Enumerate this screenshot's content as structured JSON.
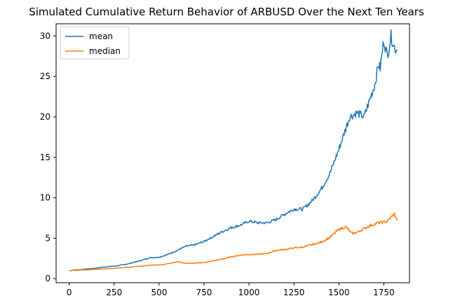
{
  "chart_data": {
    "type": "line",
    "title": "Simulated Cumulative Return Behavior of ARBUSD Over the Next Ten Years",
    "xlabel": "",
    "ylabel": "",
    "xlim": [
      -73,
      1893
    ],
    "ylim": [
      -0.5,
      31.5
    ],
    "xticks": [
      0,
      250,
      500,
      750,
      1000,
      1250,
      1500,
      1750
    ],
    "yticks": [
      0,
      5,
      10,
      15,
      20,
      25,
      30
    ],
    "grid": false,
    "legend": {
      "placement": "top-left",
      "entries": [
        "mean",
        "median"
      ]
    },
    "series": [
      {
        "name": "mean",
        "color": "#1f77b4",
        "x": [
          0,
          50,
          100,
          150,
          200,
          250,
          300,
          350,
          400,
          450,
          500,
          550,
          600,
          650,
          700,
          750,
          800,
          850,
          900,
          950,
          1000,
          1050,
          1100,
          1150,
          1200,
          1250,
          1300,
          1350,
          1400,
          1450,
          1500,
          1530,
          1560,
          1600,
          1640,
          1670,
          1700,
          1720,
          1730,
          1750,
          1770,
          1790,
          1810,
          1825
        ],
        "y": [
          1.0,
          1.1,
          1.2,
          1.3,
          1.45,
          1.55,
          1.7,
          1.95,
          2.25,
          2.6,
          2.65,
          3.0,
          3.5,
          4.0,
          4.2,
          4.6,
          5.2,
          5.8,
          6.3,
          6.6,
          7.1,
          6.9,
          6.9,
          7.3,
          8.0,
          8.6,
          8.6,
          9.6,
          11.0,
          13.0,
          16.0,
          18.0,
          20.0,
          20.5,
          20.0,
          22.0,
          24.0,
          26.5,
          26.0,
          29.5,
          27.5,
          30.0,
          28.5,
          28.2
        ]
      },
      {
        "name": "median",
        "color": "#ff7f0e",
        "x": [
          0,
          50,
          100,
          150,
          200,
          250,
          300,
          350,
          400,
          450,
          500,
          550,
          600,
          650,
          700,
          750,
          800,
          850,
          900,
          950,
          1000,
          1050,
          1100,
          1150,
          1200,
          1250,
          1300,
          1350,
          1400,
          1450,
          1500,
          1540,
          1570,
          1600,
          1640,
          1680,
          1720,
          1750,
          1770,
          1790,
          1810,
          1825
        ],
        "y": [
          1.0,
          1.05,
          1.1,
          1.15,
          1.2,
          1.3,
          1.35,
          1.45,
          1.55,
          1.65,
          1.7,
          1.85,
          2.1,
          1.9,
          1.9,
          2.0,
          2.2,
          2.4,
          2.7,
          2.9,
          3.0,
          3.0,
          3.1,
          3.5,
          3.6,
          3.8,
          3.9,
          4.2,
          4.5,
          5.1,
          6.1,
          6.4,
          5.6,
          5.7,
          6.2,
          6.6,
          6.9,
          7.0,
          7.1,
          7.6,
          8.0,
          7.2
        ]
      }
    ]
  }
}
